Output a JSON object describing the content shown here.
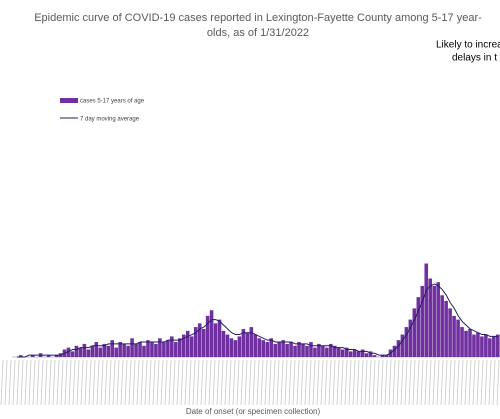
{
  "chart_data": {
    "type": "bar",
    "title": [
      "Epidemic curve of COVID-19 cases reported in Lexington-Fayette County among 5-17 year-",
      "olds, as of 1/31/2022"
    ],
    "annotation": [
      "Likely to increa",
      "delays in t"
    ],
    "x_label": "Date of onset (or specimen collection)",
    "ylim": [
      0,
      100
    ],
    "series": [
      {
        "name": "cases 5-17 years of age",
        "type": "bar",
        "color": "#7030a0",
        "values": [
          0,
          1,
          0,
          0,
          1,
          0,
          2,
          0,
          1,
          0,
          1,
          2,
          4,
          5,
          3,
          6,
          5,
          7,
          4,
          6,
          8,
          5,
          7,
          6,
          9,
          5,
          8,
          7,
          6,
          10,
          7,
          8,
          6,
          9,
          8,
          7,
          10,
          8,
          9,
          11,
          8,
          10,
          12,
          14,
          11,
          16,
          18,
          15,
          22,
          25,
          18,
          20,
          14,
          12,
          10,
          9,
          11,
          15,
          13,
          16,
          12,
          10,
          9,
          8,
          10,
          7,
          8,
          9,
          7,
          8,
          6,
          8,
          7,
          6,
          8,
          5,
          7,
          6,
          5,
          7,
          6,
          5,
          4,
          5,
          3,
          4,
          3,
          4,
          2,
          3,
          1,
          0,
          1,
          1,
          4,
          6,
          9,
          12,
          16,
          20,
          26,
          32,
          38,
          50,
          42,
          38,
          40,
          33,
          30,
          26,
          22,
          20,
          16,
          14,
          15,
          12,
          13,
          11,
          12,
          10,
          11,
          12
        ]
      },
      {
        "name": "7 day moving average",
        "type": "line",
        "color": "#1f1f5f",
        "values": [
          0,
          0,
          0,
          1,
          1,
          1,
          1,
          1,
          1,
          1,
          1,
          1,
          2,
          3,
          4,
          4,
          5,
          5,
          5,
          6,
          6,
          6,
          6,
          7,
          7,
          7,
          7,
          7,
          7,
          7,
          7,
          8,
          8,
          8,
          8,
          8,
          8,
          8,
          9,
          9,
          9,
          9,
          10,
          11,
          12,
          13,
          15,
          16,
          18,
          20,
          20,
          19,
          17,
          15,
          13,
          12,
          12,
          13,
          13,
          13,
          12,
          11,
          10,
          9,
          9,
          8,
          8,
          8,
          8,
          8,
          7,
          7,
          7,
          7,
          6,
          6,
          6,
          6,
          6,
          6,
          5,
          5,
          5,
          4,
          4,
          4,
          3,
          3,
          3,
          2,
          2,
          1,
          1,
          1,
          2,
          4,
          6,
          9,
          12,
          16,
          20,
          25,
          30,
          36,
          38,
          39,
          38,
          36,
          33,
          29,
          26,
          22,
          19,
          17,
          15,
          14,
          13,
          12,
          12,
          11,
          11,
          11
        ]
      }
    ]
  }
}
